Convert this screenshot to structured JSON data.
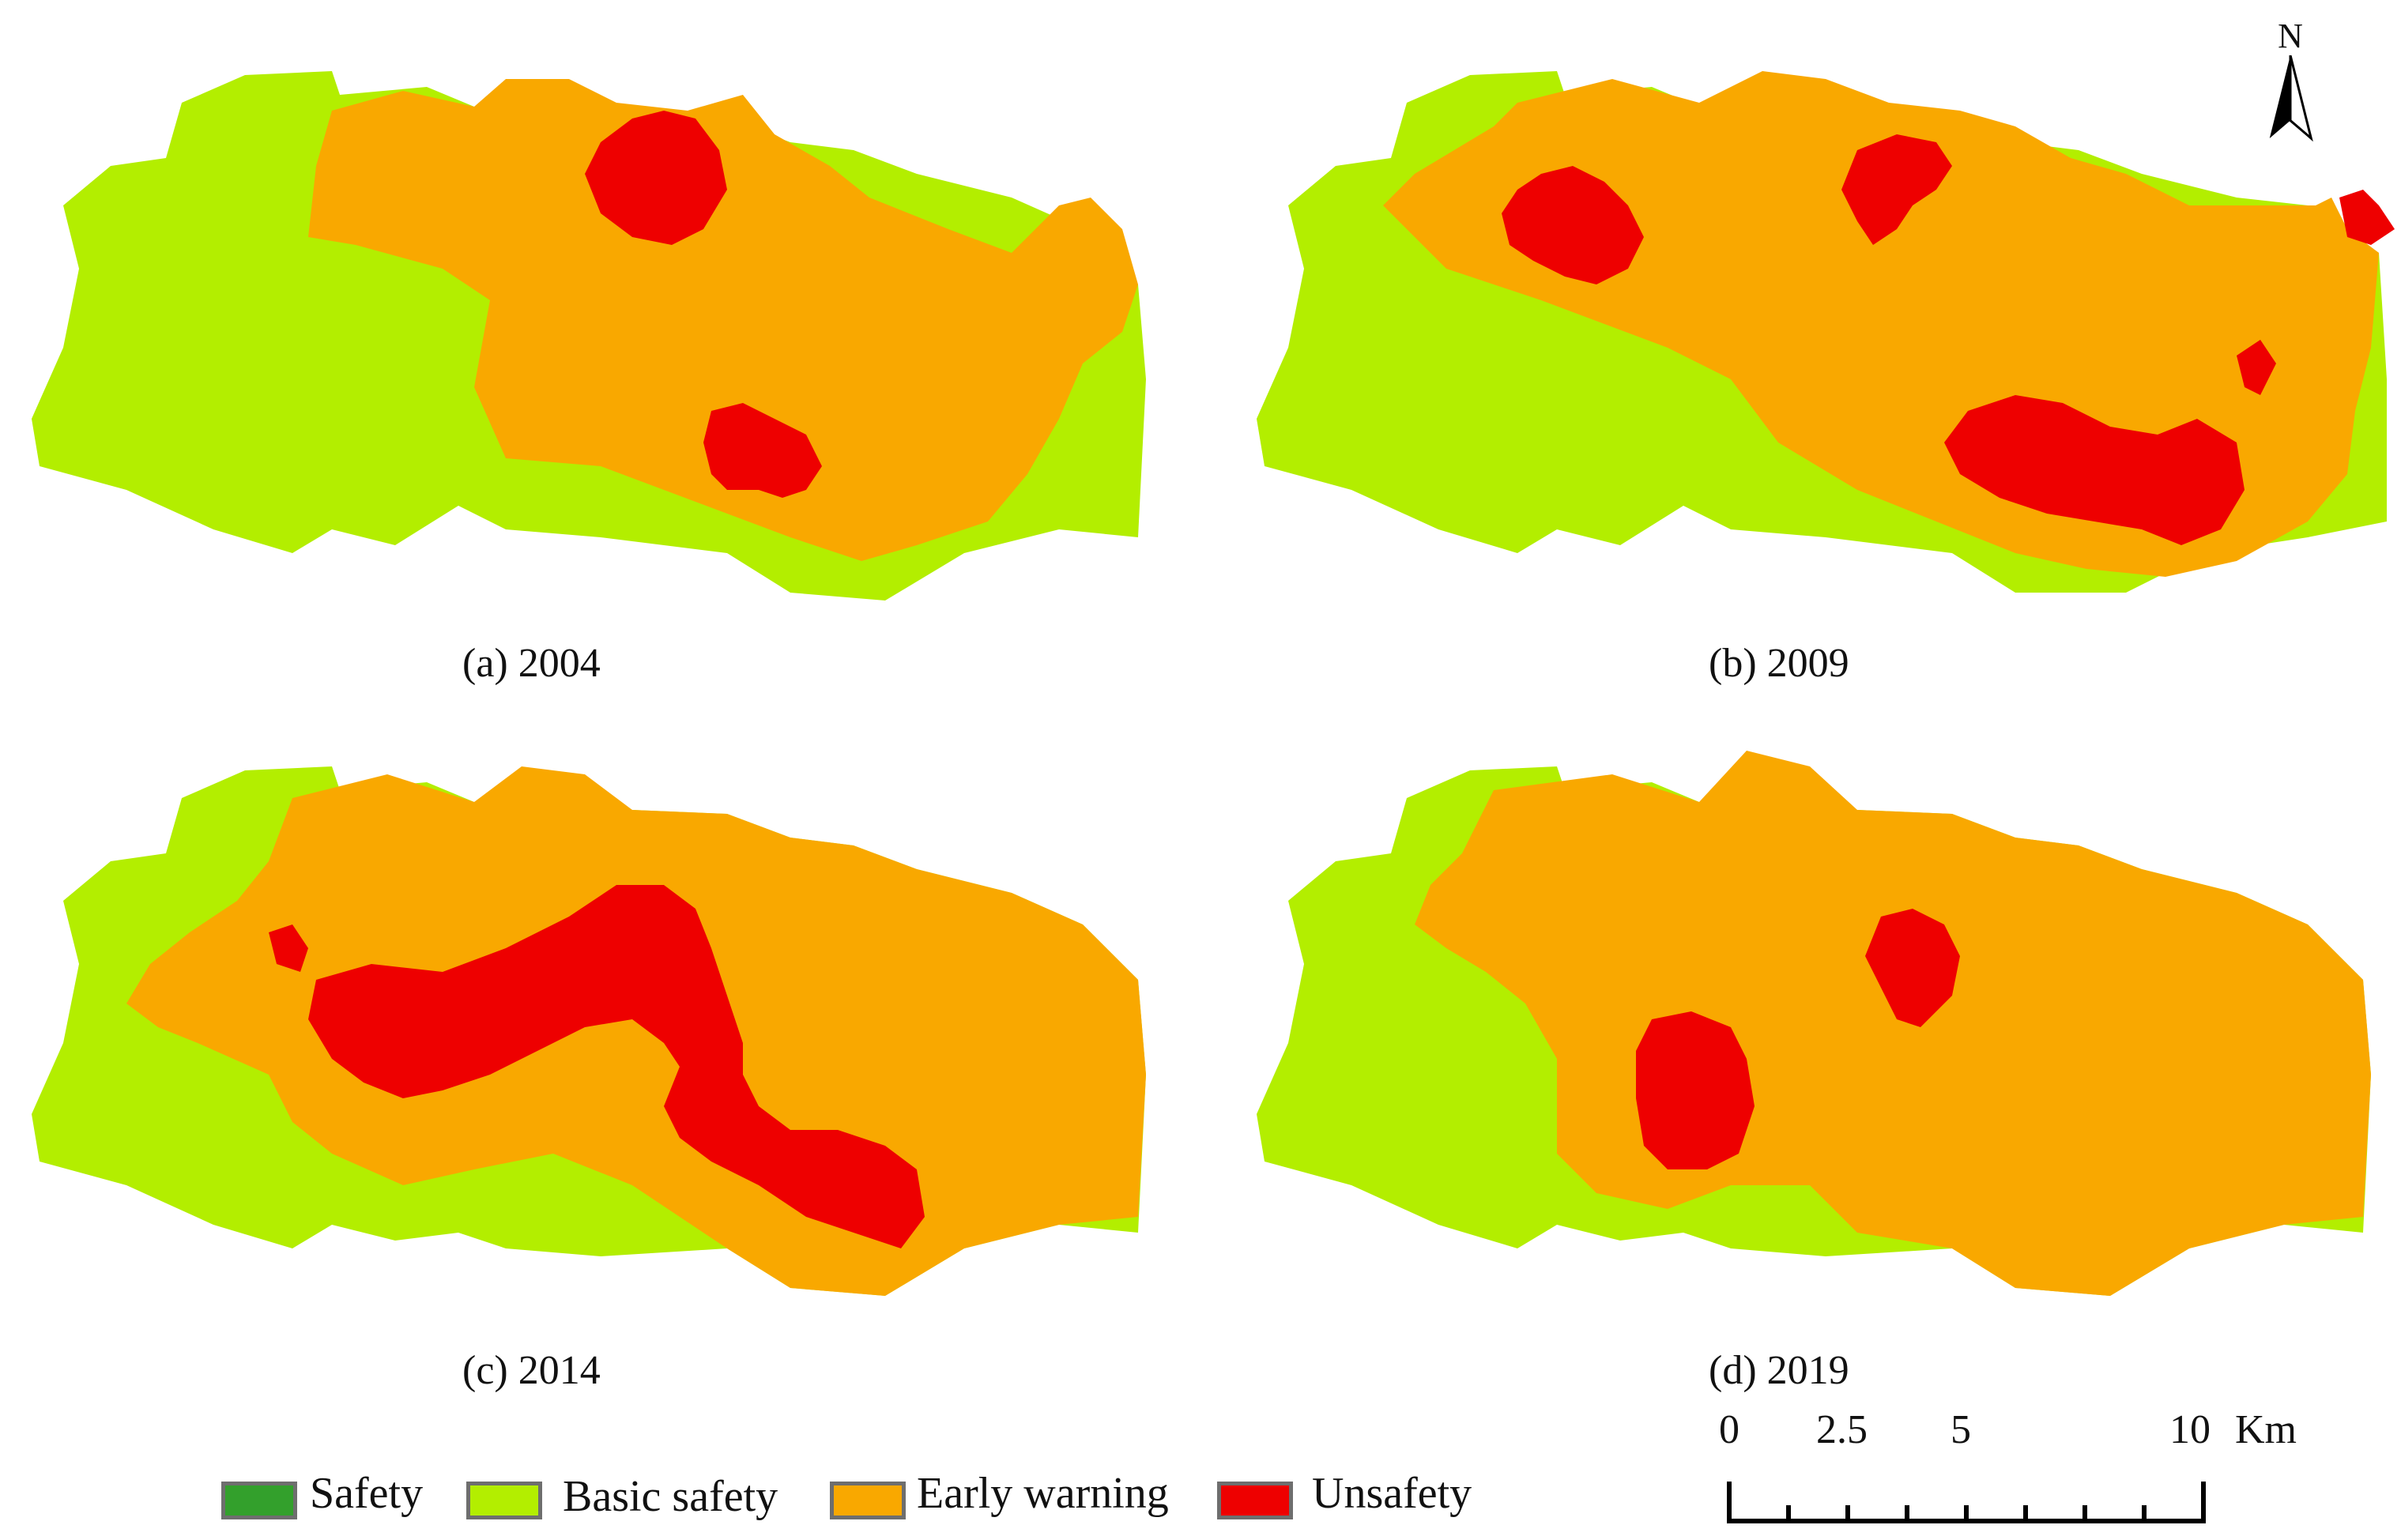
{
  "colors": {
    "safety": "#33a02c",
    "basic_safety": "#b3ee00",
    "early_warning": "#f9a800",
    "unsafety": "#ee0000",
    "legend_border": "#6e6e6e"
  },
  "panels": [
    {
      "caption": "(a) 2004"
    },
    {
      "caption": "(b) 2009"
    },
    {
      "caption": "(c) 2014"
    },
    {
      "caption": "(d) 2019"
    }
  ],
  "north_arrow": {
    "label": "N",
    "icon": "north-arrow-icon"
  },
  "legend": {
    "items": [
      {
        "label": "Safety",
        "color_key": "safety"
      },
      {
        "label": "Basic safety",
        "color_key": "basic_safety"
      },
      {
        "label": "Early warning",
        "color_key": "early_warning"
      },
      {
        "label": "Unsafety",
        "color_key": "unsafety"
      }
    ]
  },
  "scale_bar": {
    "ticks": [
      "0",
      "2.5",
      "5",
      "10"
    ],
    "unit": "Km"
  }
}
